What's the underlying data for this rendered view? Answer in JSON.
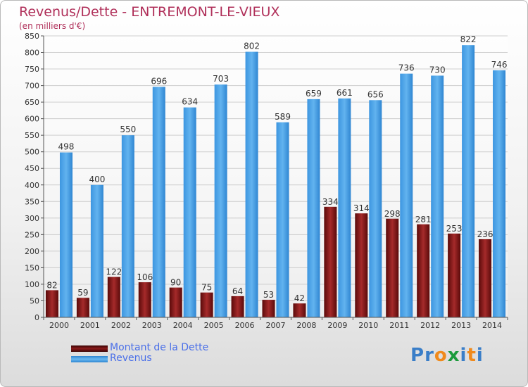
{
  "header": {
    "title": "Revenus/Dette - ENTREMONT-LE-VIEUX",
    "subtitle": "(en milliers d'€)"
  },
  "colors": {
    "title": "#b0305a",
    "dette": "#7a1515",
    "revenus": "#4fa3e6",
    "legend_text": "#4a6fe8"
  },
  "legend": {
    "items": [
      {
        "label": "Montant de la Dette",
        "color": "#6b0f0f"
      },
      {
        "label": "Revenus",
        "color": "#3d96e0"
      }
    ]
  },
  "logo": {
    "text": "Proxiti",
    "letter_colors": [
      "#3a7ec8",
      "#3a7ec8",
      "#f08a1c",
      "#1c9a3c",
      "#3a7ec8",
      "#f08a1c",
      "#3a7ec8"
    ]
  },
  "chart_data": {
    "type": "bar",
    "categories": [
      "2000",
      "2001",
      "2002",
      "2003",
      "2004",
      "2005",
      "2006",
      "2007",
      "2008",
      "2009",
      "2010",
      "2011",
      "2012",
      "2013",
      "2014"
    ],
    "series": [
      {
        "name": "Montant de la Dette",
        "values": [
          82,
          59,
          122,
          106,
          90,
          75,
          64,
          53,
          42,
          334,
          314,
          298,
          281,
          253,
          236
        ]
      },
      {
        "name": "Revenus",
        "values": [
          498,
          400,
          550,
          696,
          634,
          703,
          802,
          589,
          659,
          661,
          656,
          736,
          730,
          822,
          746
        ]
      }
    ],
    "ylim": [
      0,
      850
    ],
    "yticks": [
      0,
      50,
      100,
      150,
      200,
      250,
      300,
      350,
      400,
      450,
      500,
      550,
      600,
      650,
      700,
      750,
      800,
      850
    ],
    "grid": true,
    "legend_position": "bottom-left"
  }
}
